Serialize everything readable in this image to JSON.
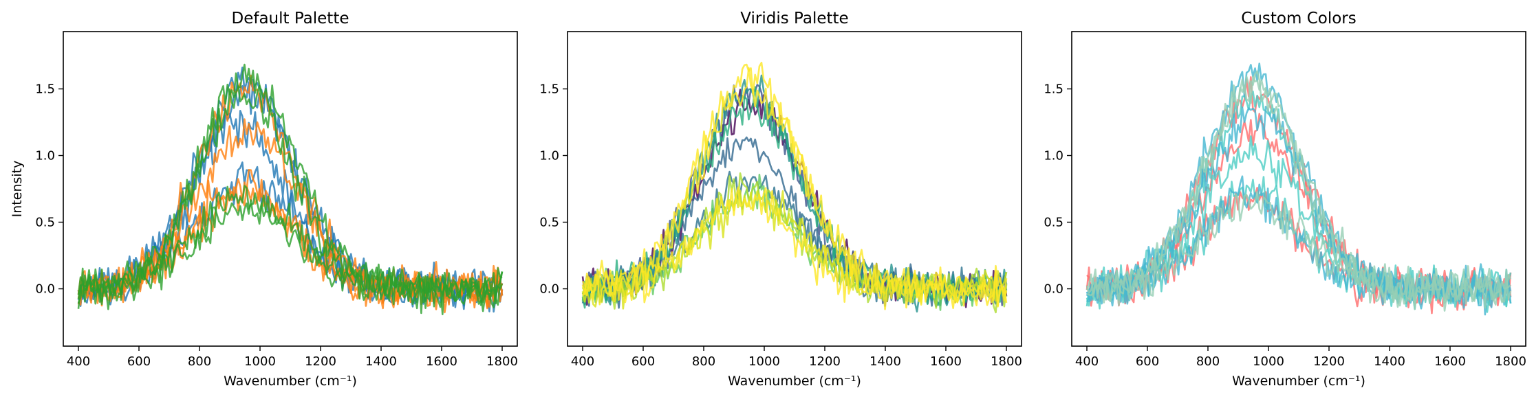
{
  "chart_data": [
    {
      "type": "line",
      "title": "Default Palette",
      "xlabel": "Wavenumber (cm⁻¹)",
      "ylabel": "Intensity",
      "xlim": [
        350,
        1850
      ],
      "ylim": [
        -0.43,
        1.93
      ],
      "xticks": [
        400,
        600,
        800,
        1000,
        1200,
        1400,
        1600,
        1800
      ],
      "yticks": [
        0.0,
        0.5,
        1.0,
        1.5
      ],
      "ytick_labels": [
        "0.0",
        "0.5",
        "1.0",
        "1.5"
      ],
      "grid": false,
      "legend": false,
      "noise_amplitude": 0.12,
      "x_range": [
        400,
        1800
      ],
      "points_per_series": 200,
      "series": [
        {
          "color": "#1f77b4",
          "peak_center": 950,
          "peak_width": 160,
          "peak_height": 1.55,
          "seed": 11
        },
        {
          "color": "#1f77b4",
          "peak_center": 960,
          "peak_width": 165,
          "peak_height": 1.45,
          "seed": 12
        },
        {
          "color": "#1f77b4",
          "peak_center": 930,
          "peak_width": 150,
          "peak_height": 1.25,
          "seed": 13
        },
        {
          "color": "#1f77b4",
          "peak_center": 960,
          "peak_width": 170,
          "peak_height": 0.8,
          "seed": 14
        },
        {
          "color": "#ff7f0e",
          "peak_center": 950,
          "peak_width": 160,
          "peak_height": 1.5,
          "seed": 21
        },
        {
          "color": "#ff7f0e",
          "peak_center": 960,
          "peak_width": 165,
          "peak_height": 1.2,
          "seed": 22
        },
        {
          "color": "#ff7f0e",
          "peak_center": 940,
          "peak_width": 155,
          "peak_height": 0.8,
          "seed": 23
        },
        {
          "color": "#ff7f0e",
          "peak_center": 950,
          "peak_width": 165,
          "peak_height": 0.7,
          "seed": 24
        },
        {
          "color": "#2ca02c",
          "peak_center": 960,
          "peak_width": 160,
          "peak_height": 1.6,
          "seed": 31
        },
        {
          "color": "#2ca02c",
          "peak_center": 950,
          "peak_width": 155,
          "peak_height": 1.45,
          "seed": 32
        },
        {
          "color": "#2ca02c",
          "peak_center": 955,
          "peak_width": 170,
          "peak_height": 0.7,
          "seed": 33
        },
        {
          "color": "#2ca02c",
          "peak_center": 950,
          "peak_width": 160,
          "peak_height": 0.6,
          "seed": 34
        }
      ]
    },
    {
      "type": "line",
      "title": "Viridis Palette",
      "xlabel": "Wavenumber (cm⁻¹)",
      "ylabel": "",
      "xlim": [
        350,
        1850
      ],
      "ylim": [
        -0.43,
        1.93
      ],
      "xticks": [
        400,
        600,
        800,
        1000,
        1200,
        1400,
        1600,
        1800
      ],
      "yticks": [
        0.0,
        0.5,
        1.0,
        1.5
      ],
      "ytick_labels": [
        "0.0",
        "0.5",
        "1.0",
        "1.5"
      ],
      "grid": false,
      "legend": false,
      "noise_amplitude": 0.12,
      "x_range": [
        400,
        1800
      ],
      "points_per_series": 200,
      "series": [
        {
          "color": "#440154",
          "peak_center": 960,
          "peak_width": 165,
          "peak_height": 1.4,
          "seed": 41
        },
        {
          "color": "#3b528b",
          "peak_center": 950,
          "peak_width": 160,
          "peak_height": 1.45,
          "seed": 42
        },
        {
          "color": "#31688e",
          "peak_center": 940,
          "peak_width": 155,
          "peak_height": 1.1,
          "seed": 43
        },
        {
          "color": "#2c728e",
          "peak_center": 960,
          "peak_width": 170,
          "peak_height": 0.8,
          "seed": 44
        },
        {
          "color": "#21918c",
          "peak_center": 950,
          "peak_width": 160,
          "peak_height": 1.5,
          "seed": 45
        },
        {
          "color": "#28ae80",
          "peak_center": 955,
          "peak_width": 165,
          "peak_height": 1.35,
          "seed": 46
        },
        {
          "color": "#5ec962",
          "peak_center": 950,
          "peak_width": 160,
          "peak_height": 0.7,
          "seed": 47
        },
        {
          "color": "#addc30",
          "peak_center": 945,
          "peak_width": 155,
          "peak_height": 0.75,
          "seed": 48
        },
        {
          "color": "#d8e219",
          "peak_center": 960,
          "peak_width": 165,
          "peak_height": 0.65,
          "seed": 49
        },
        {
          "color": "#fde725",
          "peak_center": 950,
          "peak_width": 160,
          "peak_height": 1.6,
          "seed": 50
        },
        {
          "color": "#fde725",
          "peak_center": 940,
          "peak_width": 150,
          "peak_height": 0.7,
          "seed": 51
        },
        {
          "color": "#fde725",
          "peak_center": 955,
          "peak_width": 170,
          "peak_height": 1.5,
          "seed": 52
        }
      ]
    },
    {
      "type": "line",
      "title": "Custom Colors",
      "xlabel": "Wavenumber (cm⁻¹)",
      "ylabel": "",
      "xlim": [
        350,
        1850
      ],
      "ylim": [
        -0.43,
        1.93
      ],
      "xticks": [
        400,
        600,
        800,
        1000,
        1200,
        1400,
        1600,
        1800
      ],
      "yticks": [
        0.0,
        0.5,
        1.0,
        1.5
      ],
      "ytick_labels": [
        "0.0",
        "0.5",
        "1.0",
        "1.5"
      ],
      "grid": false,
      "legend": false,
      "noise_amplitude": 0.12,
      "x_range": [
        400,
        1800
      ],
      "points_per_series": 200,
      "series": [
        {
          "color": "#ff6b6b",
          "peak_center": 950,
          "peak_width": 160,
          "peak_height": 1.45,
          "seed": 61
        },
        {
          "color": "#ff6b6b",
          "peak_center": 940,
          "peak_width": 155,
          "peak_height": 0.7,
          "seed": 62
        },
        {
          "color": "#ff6b6b",
          "peak_center": 960,
          "peak_width": 165,
          "peak_height": 1.2,
          "seed": 63
        },
        {
          "color": "#4ecdc4",
          "peak_center": 950,
          "peak_width": 160,
          "peak_height": 1.4,
          "seed": 64
        },
        {
          "color": "#4ecdc4",
          "peak_center": 955,
          "peak_width": 170,
          "peak_height": 1.0,
          "seed": 65
        },
        {
          "color": "#4ecdc4",
          "peak_center": 945,
          "peak_width": 155,
          "peak_height": 0.75,
          "seed": 66
        },
        {
          "color": "#45b7d1",
          "peak_center": 950,
          "peak_width": 160,
          "peak_height": 1.6,
          "seed": 67
        },
        {
          "color": "#45b7d1",
          "peak_center": 960,
          "peak_width": 165,
          "peak_height": 1.3,
          "seed": 68
        },
        {
          "color": "#45b7d1",
          "peak_center": 940,
          "peak_width": 150,
          "peak_height": 0.7,
          "seed": 69
        },
        {
          "color": "#96ceb4",
          "peak_center": 950,
          "peak_width": 160,
          "peak_height": 1.55,
          "seed": 70
        },
        {
          "color": "#96ceb4",
          "peak_center": 955,
          "peak_width": 165,
          "peak_height": 0.65,
          "seed": 71
        },
        {
          "color": "#96ceb4",
          "peak_center": 945,
          "peak_width": 155,
          "peak_height": 1.5,
          "seed": 72
        }
      ]
    }
  ]
}
